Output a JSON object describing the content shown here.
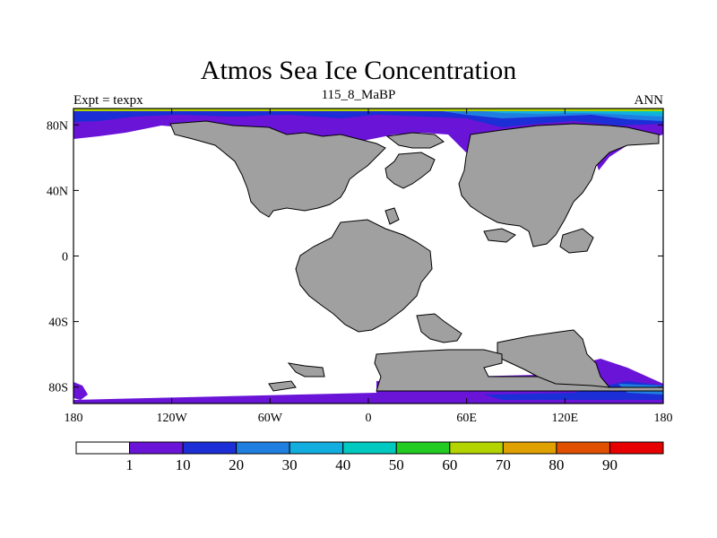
{
  "title": "Atmos Sea Ice Concentration",
  "left_label": "Expt = texpx",
  "center_label": "115_8_MaBP",
  "right_label": "ANN",
  "lon_ticks": [
    "180",
    "120W",
    "60W",
    "0",
    "60E",
    "120E",
    "180"
  ],
  "lat_ticks": [
    "80N",
    "40N",
    "0",
    "40S",
    "80S"
  ],
  "colorbar": {
    "labels": [
      "1",
      "10",
      "20",
      "30",
      "40",
      "50",
      "60",
      "70",
      "80",
      "90"
    ],
    "colors": [
      "#ffffff",
      "#6a14d8",
      "#1c2ed6",
      "#1f7fe0",
      "#13aee0",
      "#00c9c0",
      "#22cc22",
      "#b3d400",
      "#e0a000",
      "#e05000",
      "#e60000"
    ]
  },
  "colors": {
    "land": "#a0a0a0",
    "ice_low": "#6a14d8",
    "ice_mid": "#1c2ed6",
    "ice_30": "#1f7fe0",
    "ice_40": "#13aee0",
    "ice_50": "#00c9c0"
  }
}
